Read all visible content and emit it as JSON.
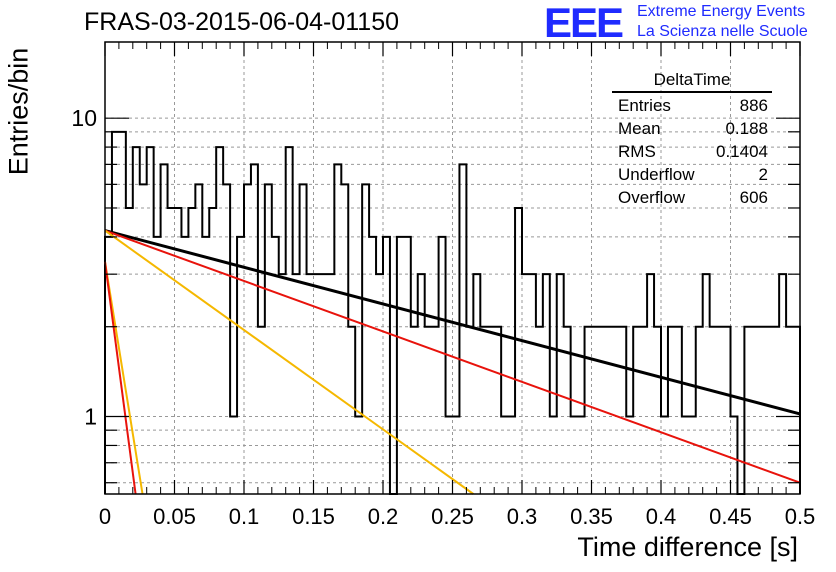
{
  "header": {
    "title": "FRAS-03-2015-06-04-01150"
  },
  "logo": {
    "mark": "EEE",
    "line1": "Extreme Energy Events",
    "line2": "La Scienza nelle Scuole",
    "color": "#1f2bff"
  },
  "stats": {
    "title": "DeltaTime",
    "rows": [
      {
        "label": "Entries",
        "value": "886"
      },
      {
        "label": "Mean",
        "value": "0.188"
      },
      {
        "label": "RMS",
        "value": "0.1404"
      },
      {
        "label": "Underflow",
        "value": "2"
      },
      {
        "label": "Overflow",
        "value": "606"
      }
    ]
  },
  "chart_data": {
    "type": "line",
    "title": "FRAS-03-2015-06-04-01150",
    "xlabel": "Time difference [s]",
    "ylabel": "Entries/bin",
    "xlim": [
      0,
      0.5
    ],
    "ylim": [
      0.55,
      18
    ],
    "yscale": "log",
    "grid": true,
    "xticks": [
      "0",
      "0.05",
      "0.1",
      "0.15",
      "0.2",
      "0.25",
      "0.3",
      "0.35",
      "0.4",
      "0.45",
      "0.5"
    ],
    "yticks": [
      "1",
      "10"
    ],
    "histogram": {
      "bin_width": 0.005,
      "color": "#000000",
      "values": [
        4,
        9,
        9,
        5,
        8,
        6,
        8,
        4,
        7,
        5,
        5,
        4,
        5,
        6,
        4,
        5,
        8,
        6,
        1,
        4,
        6,
        7,
        2,
        6,
        4,
        3,
        8,
        3,
        6,
        3,
        3,
        3,
        3,
        7,
        6,
        2,
        1,
        6,
        4,
        3,
        4,
        0.5,
        4,
        4,
        2,
        3,
        2,
        2,
        4,
        1,
        1,
        7,
        2,
        3,
        2,
        2,
        2,
        1,
        1,
        5,
        3,
        3,
        2,
        3,
        1,
        3,
        2,
        1,
        1,
        2,
        2,
        2,
        2,
        2,
        2,
        1,
        2,
        2,
        3,
        2,
        1,
        2,
        2,
        1,
        1,
        2,
        3,
        2,
        2,
        2,
        1,
        0.5,
        2,
        2,
        2,
        2,
        2,
        3,
        2,
        2
      ]
    },
    "series": [
      {
        "color": "#000000",
        "x": [
          0,
          0.5
        ],
        "y": [
          4.2,
          1.02
        ]
      },
      {
        "color": "#e8130c",
        "x": [
          0,
          0.5
        ],
        "y": [
          4.2,
          0.6
        ]
      },
      {
        "color": "#f5b800",
        "x": [
          0,
          0.265
        ],
        "y": [
          4.2,
          0.55
        ]
      },
      {
        "color": "#f5b800",
        "x": [
          0,
          0.027
        ],
        "y": [
          3.3,
          0.55
        ]
      },
      {
        "color": "#e8130c",
        "x": [
          0,
          0.022
        ],
        "y": [
          3.3,
          0.55
        ]
      }
    ]
  }
}
